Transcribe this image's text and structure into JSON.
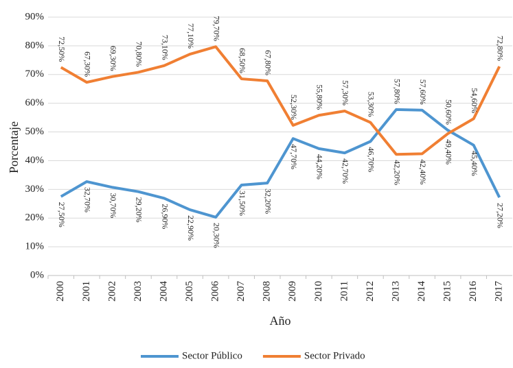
{
  "chart_data": {
    "type": "line",
    "x_label": "Año",
    "y_label": "Porcentaje",
    "categories": [
      "2000",
      "2001",
      "2002",
      "2003",
      "2004",
      "2005",
      "2006",
      "2007",
      "2008",
      "2009",
      "2010",
      "2011",
      "2012",
      "2013",
      "2014",
      "2015",
      "2016",
      "2017"
    ],
    "series": [
      {
        "name": "Sector Público",
        "color": "#4e95d0",
        "values": [
          27.5,
          32.7,
          30.7,
          29.2,
          26.9,
          22.9,
          20.3,
          31.5,
          32.2,
          47.7,
          44.2,
          42.7,
          46.7,
          57.8,
          57.6,
          50.6,
          45.4,
          27.2
        ],
        "value_labels": [
          "27,50%",
          "32,70%",
          "30,70%",
          "29,20%",
          "26,90%",
          "22,90%",
          "20,30%",
          "31,50%",
          "32,20%",
          "47,70%",
          "44,20%",
          "42,70%",
          "46,70%",
          "57,80%",
          "57,60%",
          "50,60%",
          "45,40%",
          "27,20%"
        ]
      },
      {
        "name": "Sector Privado",
        "color": "#f07f33",
        "values": [
          72.5,
          67.3,
          69.3,
          70.8,
          73.1,
          77.1,
          79.7,
          68.5,
          67.8,
          52.3,
          55.8,
          57.3,
          53.3,
          42.2,
          42.4,
          49.4,
          54.6,
          72.8
        ],
        "value_labels": [
          "72,50%",
          "67,30%",
          "69,30%",
          "70,80%",
          "73,10%",
          "77,10%",
          "79,70%",
          "68,50%",
          "67,80%",
          "52,30%",
          "55,80%",
          "57,30%",
          "53,30%",
          "42,20%",
          "42,40%",
          "49,40%",
          "54,60%",
          "72,80%"
        ]
      }
    ],
    "ylim": [
      0,
      90
    ],
    "yticks": [
      {
        "value": 0,
        "label": "0%"
      },
      {
        "value": 10,
        "label": "10%"
      },
      {
        "value": 20,
        "label": "20%"
      },
      {
        "value": 30,
        "label": "30%"
      },
      {
        "value": 40,
        "label": "40%"
      },
      {
        "value": 50,
        "label": "50%"
      },
      {
        "value": 60,
        "label": "60%"
      },
      {
        "value": 70,
        "label": "70%"
      },
      {
        "value": 80,
        "label": "80%"
      },
      {
        "value": 90,
        "label": "90%"
      }
    ],
    "grid": true,
    "legend": "bottom"
  }
}
